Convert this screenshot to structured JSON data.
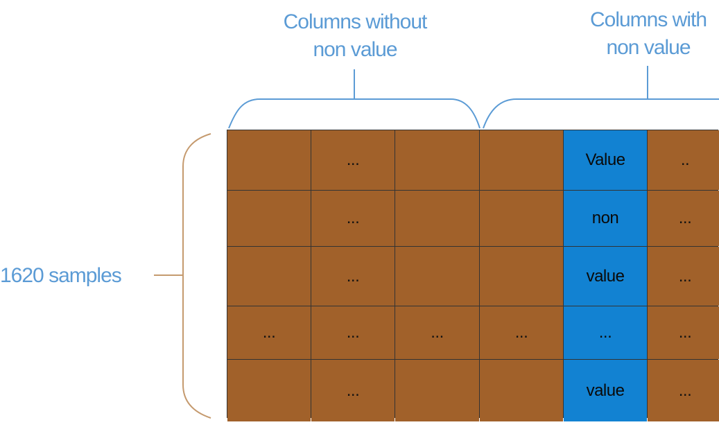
{
  "labels": {
    "columns_without": [
      "Columns without",
      "non value"
    ],
    "columns_with": [
      "Columns with",
      "non value"
    ],
    "samples": "1620 samples"
  },
  "colors": {
    "label_text": "#5b9bd5",
    "bracket_blue": "#5b9bd5",
    "bracket_brown": "#c59a6e",
    "cell_brown": "#a1612a",
    "cell_blue": "#1282d2"
  },
  "table": {
    "rows": [
      [
        {
          "text": "",
          "highlight": false
        },
        {
          "text": "...",
          "highlight": false
        },
        {
          "text": "",
          "highlight": false
        },
        {
          "text": "",
          "highlight": false
        },
        {
          "text": "Value",
          "highlight": true
        },
        {
          "text": "..",
          "highlight": false
        }
      ],
      [
        {
          "text": "",
          "highlight": false
        },
        {
          "text": "...",
          "highlight": false
        },
        {
          "text": "",
          "highlight": false
        },
        {
          "text": "",
          "highlight": false
        },
        {
          "text": "non",
          "highlight": true
        },
        {
          "text": "...",
          "highlight": false
        }
      ],
      [
        {
          "text": "",
          "highlight": false
        },
        {
          "text": "...",
          "highlight": false
        },
        {
          "text": "",
          "highlight": false
        },
        {
          "text": "",
          "highlight": false
        },
        {
          "text": "value",
          "highlight": true
        },
        {
          "text": "...",
          "highlight": false
        }
      ],
      [
        {
          "text": "...",
          "highlight": false
        },
        {
          "text": "...",
          "highlight": false
        },
        {
          "text": "...",
          "highlight": false
        },
        {
          "text": "...",
          "highlight": false
        },
        {
          "text": "...",
          "highlight": true
        },
        {
          "text": "...",
          "highlight": false
        }
      ],
      [
        {
          "text": "",
          "highlight": false
        },
        {
          "text": "...",
          "highlight": false
        },
        {
          "text": "",
          "highlight": false
        },
        {
          "text": "",
          "highlight": false
        },
        {
          "text": "value",
          "highlight": true
        },
        {
          "text": "...",
          "highlight": false
        }
      ]
    ]
  }
}
